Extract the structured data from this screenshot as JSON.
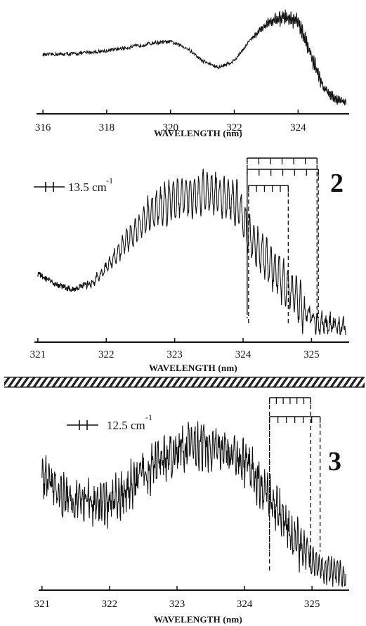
{
  "chart_data": [
    {
      "type": "line",
      "panel": "top",
      "xlabel": "WAVELENGTH (nm)",
      "xlim": [
        315.8,
        325.6
      ],
      "xticks": [
        316,
        318,
        320,
        322,
        324
      ],
      "ylim": [
        0,
        1
      ],
      "series": [
        {
          "x": [
            316.0,
            317.0,
            318.0,
            319.0,
            319.5,
            320.0,
            320.5,
            321.0,
            321.5,
            322.0,
            322.5,
            323.0,
            323.5,
            324.0,
            324.4,
            324.8,
            325.2,
            325.5
          ],
          "values": [
            0.55,
            0.56,
            0.59,
            0.64,
            0.67,
            0.68,
            0.62,
            0.49,
            0.42,
            0.49,
            0.7,
            0.85,
            0.93,
            0.88,
            0.55,
            0.22,
            0.1,
            0.08
          ]
        }
      ]
    },
    {
      "type": "line",
      "panel": "2",
      "label": "2",
      "scale_bar": "13.5 cm",
      "scale_sup": "-1",
      "xlabel": "WAVELENGTH (nm)",
      "xlim": [
        320.95,
        325.55
      ],
      "xticks": [
        321,
        322,
        323,
        324,
        325
      ],
      "ylim": [
        0,
        1
      ],
      "series": [
        {
          "x": [
            321.0,
            321.2,
            321.5,
            321.8,
            322.0,
            322.2,
            322.4,
            322.6,
            322.8,
            323.0,
            323.2,
            323.4,
            323.6,
            323.8,
            323.95,
            324.1,
            324.3,
            324.5,
            324.7,
            324.9,
            325.1,
            325.3,
            325.5
          ],
          "values": [
            0.35,
            0.3,
            0.26,
            0.3,
            0.38,
            0.48,
            0.58,
            0.67,
            0.73,
            0.77,
            0.79,
            0.8,
            0.8,
            0.77,
            0.72,
            0.55,
            0.45,
            0.35,
            0.25,
            0.14,
            0.07,
            0.06,
            0.05
          ]
        }
      ],
      "combs": [
        {
          "x_start": 324.08,
          "x_end": 324.66
        },
        {
          "x_start": 324.06,
          "x_end": 325.08
        },
        {
          "x_start": 324.06,
          "x_end": 325.1
        }
      ]
    },
    {
      "type": "line",
      "panel": "3",
      "label": "3",
      "scale_bar": "12.5 cm",
      "scale_sup": "-1",
      "xlabel": "WAVELENGTH (nm)",
      "xlim": [
        320.95,
        325.55
      ],
      "xticks": [
        321,
        322,
        323,
        324,
        325
      ],
      "ylim": [
        0,
        1
      ],
      "series": [
        {
          "x": [
            321.0,
            321.2,
            321.5,
            321.8,
            322.0,
            322.2,
            322.4,
            322.6,
            322.8,
            323.0,
            323.2,
            323.4,
            323.6,
            323.8,
            324.0,
            324.2,
            324.4,
            324.6,
            324.8,
            325.0,
            325.2,
            325.4,
            325.5
          ],
          "values": [
            0.55,
            0.5,
            0.45,
            0.42,
            0.42,
            0.48,
            0.55,
            0.61,
            0.66,
            0.7,
            0.73,
            0.73,
            0.71,
            0.68,
            0.64,
            0.56,
            0.45,
            0.34,
            0.22,
            0.14,
            0.09,
            0.07,
            0.06
          ]
        }
      ],
      "combs": [
        {
          "x_start": 324.37,
          "x_end": 325.12
        },
        {
          "x_start": 324.37,
          "x_end": 324.98
        }
      ]
    }
  ]
}
